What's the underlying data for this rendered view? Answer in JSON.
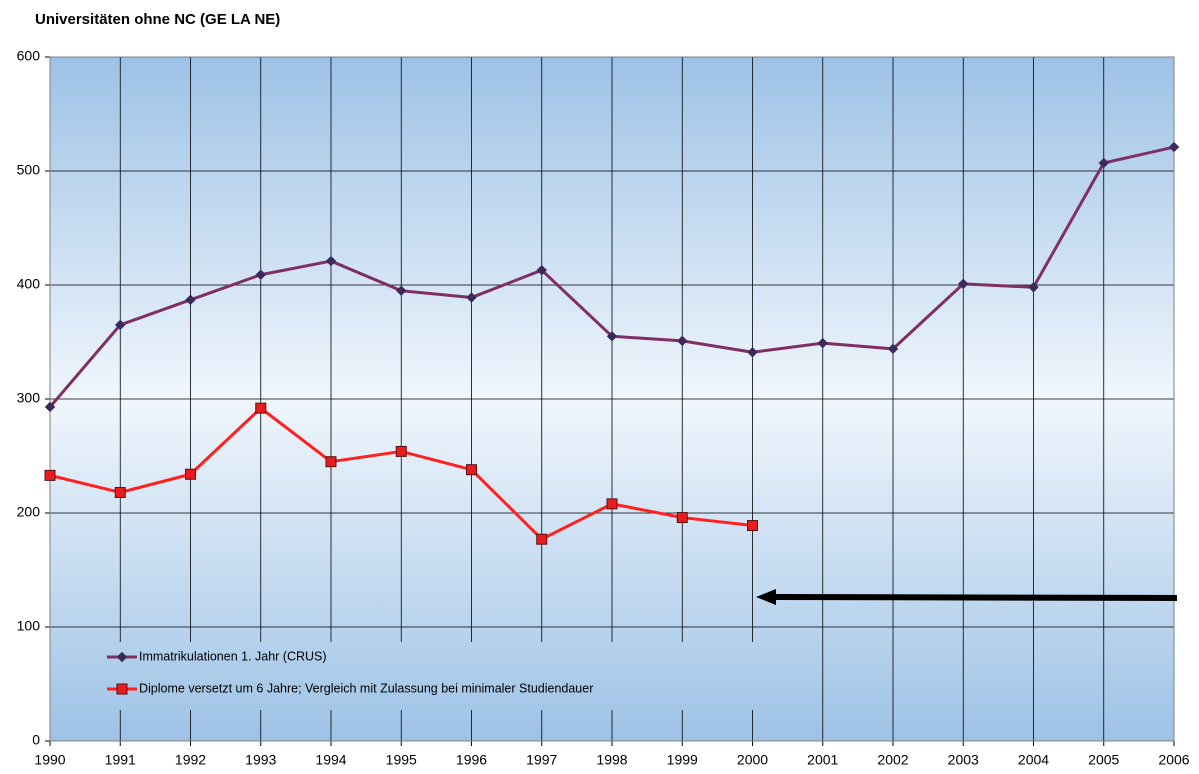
{
  "chart_data": {
    "type": "line",
    "title": "Universitäten ohne NC (GE LA NE)",
    "x": [
      1990,
      1991,
      1992,
      1993,
      1994,
      1995,
      1996,
      1997,
      1998,
      1999,
      2000,
      2001,
      2002,
      2003,
      2004,
      2005,
      2006
    ],
    "series": [
      {
        "name": "Immatrikulationen 1. Jahr (CRUS)",
        "color": "#7f2f63",
        "marker": "diamond",
        "marker_color": "#3b2a5c",
        "values": [
          293,
          365,
          387,
          409,
          421,
          395,
          389,
          413,
          355,
          351,
          341,
          349,
          344,
          401,
          398,
          507,
          521
        ]
      },
      {
        "name": "Diplome versetzt um 6 Jahre; Vergleich mit Zulassung bei minimaler Studiendauer",
        "color": "#ff2020",
        "marker": "square",
        "marker_color": "#e81c1c",
        "values": [
          233,
          218,
          234,
          292,
          245,
          254,
          238,
          177,
          208,
          196,
          189,
          null,
          null,
          null,
          null,
          null,
          null
        ]
      }
    ],
    "xlim": [
      1990,
      2006
    ],
    "xticks": [
      1990,
      1991,
      1992,
      1993,
      1994,
      1995,
      1996,
      1997,
      1998,
      1999,
      2000,
      2001,
      2002,
      2003,
      2004,
      2005,
      2006
    ],
    "ylim": [
      0,
      600
    ],
    "yticks": [
      0,
      100,
      200,
      300,
      400,
      500,
      600
    ],
    "grid": true,
    "legend": "lower left"
  }
}
